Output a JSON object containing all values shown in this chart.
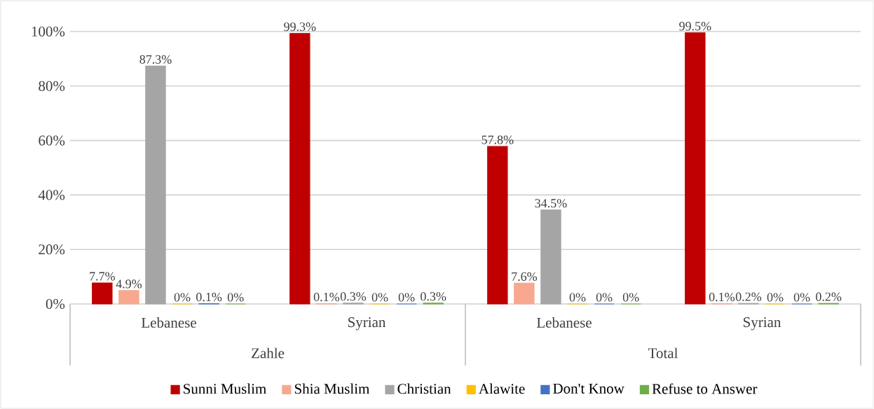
{
  "chart_data": {
    "type": "bar",
    "categories": [
      "Lebanese",
      "Syrian",
      "Lebanese",
      "Syrian"
    ],
    "annotations": [
      "Zahle",
      "Total"
    ],
    "series": [
      {
        "name": "Sunni Muslim",
        "color": "#c00000",
        "values": [
          7.7,
          99.3,
          57.8,
          99.5
        ],
        "value_labels": [
          "7.7%",
          "99.3%",
          "57.8%",
          "99.5%"
        ]
      },
      {
        "name": "Shia Muslim",
        "color": "#f8a88f",
        "values": [
          4.9,
          0.1,
          7.6,
          0.1
        ],
        "value_labels": [
          "4.9%",
          "0.1%",
          "7.6%",
          "0.1%"
        ]
      },
      {
        "name": "Christian",
        "color": "#a5a5a5",
        "values": [
          87.3,
          0.3,
          34.5,
          0.2
        ],
        "value_labels": [
          "87.3%",
          "0.3%",
          "34.5%",
          "0.2%"
        ]
      },
      {
        "name": "Alawite",
        "color": "#ffc000",
        "values": [
          0,
          0,
          0,
          0
        ],
        "value_labels": [
          "0%",
          "0%",
          "0%",
          "0%"
        ]
      },
      {
        "name": "Don't Know",
        "color": "#4472c4",
        "values": [
          0.1,
          0,
          0,
          0
        ],
        "value_labels": [
          "0.1%",
          "0%",
          "0%",
          "0%"
        ]
      },
      {
        "name": "Refuse to Answer",
        "color": "#70ad47",
        "values": [
          0,
          0.3,
          0,
          0.2
        ],
        "value_labels": [
          "0%",
          "0.3%",
          "0%",
          "0.2%"
        ]
      }
    ],
    "ylim": [
      0,
      100
    ],
    "yticks": [
      {
        "value": 0,
        "label": "0%"
      },
      {
        "value": 20,
        "label": "20%"
      },
      {
        "value": 40,
        "label": "40%"
      },
      {
        "value": 60,
        "label": "60%"
      },
      {
        "value": 80,
        "label": "80%"
      },
      {
        "value": 100,
        "label": "100%"
      }
    ],
    "grid": "y",
    "legend": "bottom"
  }
}
